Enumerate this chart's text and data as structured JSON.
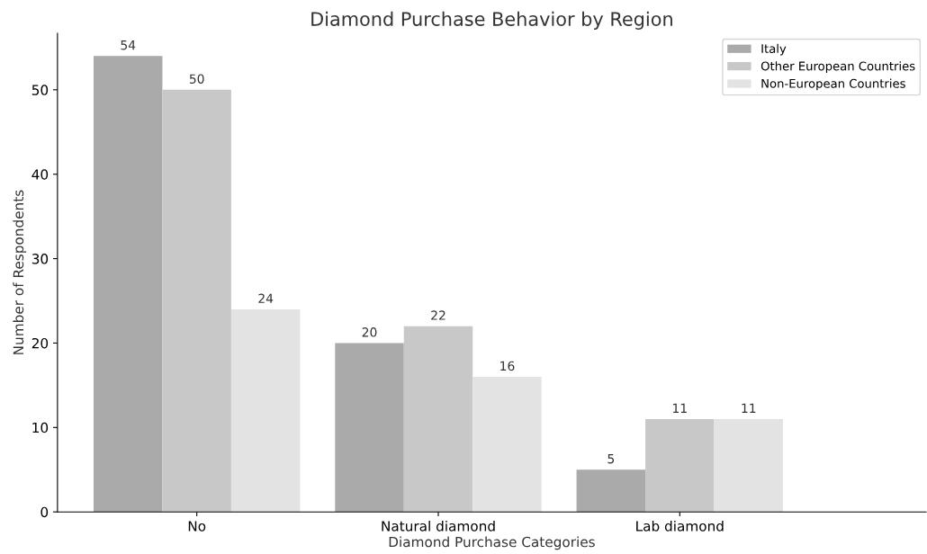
{
  "chart_data": {
    "type": "bar",
    "title": "Diamond Purchase Behavior by Region",
    "xlabel": "Diamond Purchase Categories",
    "ylabel": "Number of Respondents",
    "categories": [
      "No",
      "Natural diamond",
      "Lab diamond"
    ],
    "series": [
      {
        "name": "Italy",
        "color": "#aaaaaa",
        "values": [
          54,
          20,
          5
        ]
      },
      {
        "name": "Other European Countries",
        "color": "#c8c8c8",
        "values": [
          50,
          22,
          11
        ]
      },
      {
        "name": "Non-European Countries",
        "color": "#e3e3e3",
        "values": [
          24,
          16,
          11
        ]
      }
    ],
    "ylim": [
      0,
      56.7
    ],
    "yticks": [
      0,
      10,
      20,
      30,
      40,
      50
    ],
    "data_labels": true,
    "legend": "top right",
    "grid": false
  }
}
